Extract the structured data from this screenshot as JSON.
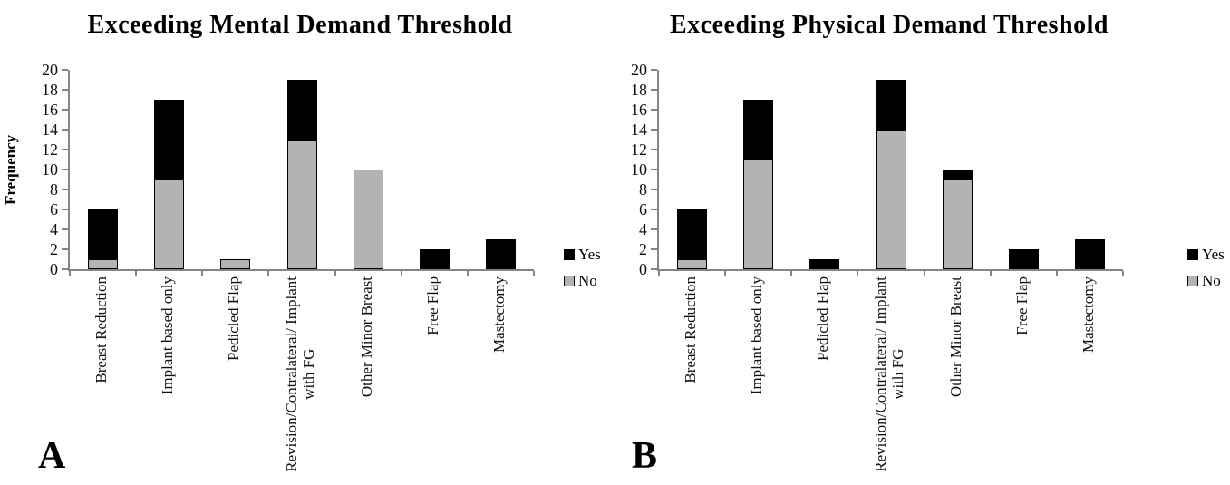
{
  "figure": {
    "background": "#ffffff",
    "text_color": "#000000",
    "axis_color": "#848484"
  },
  "chart_data": [
    {
      "type": "bar",
      "stacked": true,
      "title": "Exceeding Mental Demand Threshold",
      "panel_label": "A",
      "xlabel": "",
      "ylabel": "Frequency",
      "ylim": [
        0,
        20
      ],
      "ytick_step": 2,
      "grid": false,
      "legend_position": "right",
      "categories": [
        "Breast Reduction",
        "Implant based only",
        "Pedicled Flap",
        "Revision/Contralateral/ Implant\nwith FG",
        "Other Minor Breast",
        "Free Flap",
        "Mastectomy"
      ],
      "series": [
        {
          "name": "Yes",
          "color": "#000000",
          "values": [
            5,
            8,
            0,
            6,
            0,
            2,
            3
          ]
        },
        {
          "name": "No",
          "color": "#b3b3b3",
          "values": [
            1,
            9,
            1,
            13,
            10,
            0,
            0
          ]
        }
      ],
      "totals": [
        6,
        17,
        1,
        19,
        10,
        2,
        3
      ]
    },
    {
      "type": "bar",
      "stacked": true,
      "title": "Exceeding Physical Demand Threshold",
      "panel_label": "B",
      "xlabel": "",
      "ylabel": "",
      "ylim": [
        0,
        20
      ],
      "ytick_step": 2,
      "grid": false,
      "legend_position": "right",
      "categories": [
        "Breast Reduction",
        "Implant based only",
        "Pedicled Flap",
        "Revision/Contralateral/ Implant\nwith FG",
        "Other Minor Breast",
        "Free Flap",
        "Mastectomy"
      ],
      "series": [
        {
          "name": "Yes",
          "color": "#000000",
          "values": [
            5,
            6,
            1,
            5,
            1,
            2,
            3
          ]
        },
        {
          "name": "No",
          "color": "#b3b3b3",
          "values": [
            1,
            11,
            0,
            14,
            9,
            0,
            0
          ]
        }
      ],
      "totals": [
        6,
        17,
        1,
        19,
        10,
        2,
        3
      ]
    }
  ]
}
